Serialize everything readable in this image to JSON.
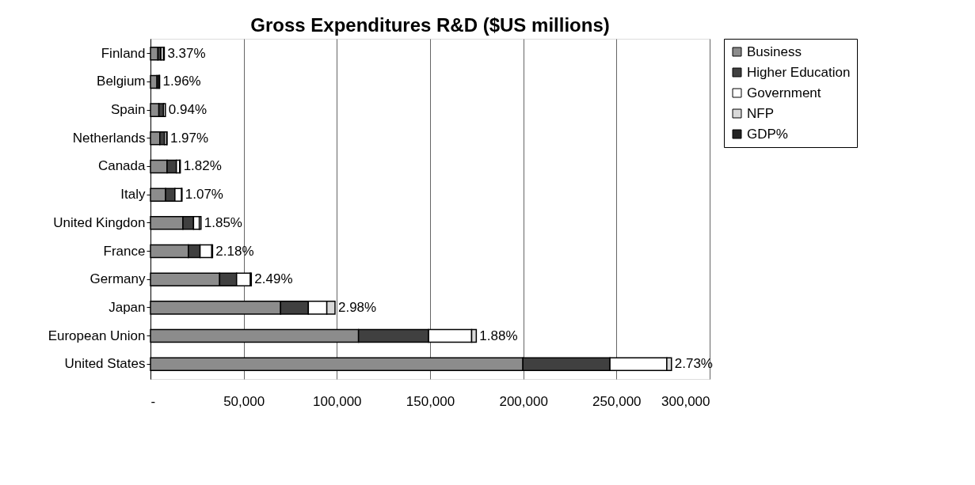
{
  "chart_data": {
    "type": "bar",
    "orientation": "horizontal",
    "stacked": true,
    "title": "Gross Expenditures R&D ($US millions)",
    "categories": [
      "Finland",
      "Belgium",
      "Spain",
      "Netherlands",
      "Canada",
      "Italy",
      "United Kingdon",
      "France",
      "Germany",
      "Japan",
      "European Union",
      "United States"
    ],
    "series": [
      {
        "name": "Business",
        "color": "#8c8c8c",
        "values": [
          4000,
          3500,
          4500,
          5000,
          8900,
          8100,
          17400,
          20300,
          37100,
          69800,
          111600,
          199800
        ]
      },
      {
        "name": "Higher Education",
        "color": "#404040",
        "values": [
          1600,
          1000,
          2500,
          2500,
          5000,
          5000,
          5700,
          6300,
          9100,
          14900,
          37600,
          46700
        ]
      },
      {
        "name": "Government",
        "color": "#ffffff",
        "values": [
          1400,
          300,
          1000,
          1200,
          1800,
          3600,
          3100,
          6300,
          7400,
          9900,
          23100,
          30500
        ]
      },
      {
        "name": "NFP",
        "color": "#d9d9d9",
        "values": [
          400,
          100,
          null,
          200,
          300,
          200,
          900,
          400,
          500,
          4400,
          2500,
          2500
        ]
      },
      {
        "name": "GDP%",
        "color": "#222222",
        "values": [
          null,
          null,
          null,
          null,
          null,
          null,
          null,
          null,
          null,
          null,
          null,
          null
        ],
        "value_labels": [
          "3.37%",
          "1.96%",
          "0.94%",
          "1.97%",
          "1.82%",
          "1.07%",
          "1.85%",
          "2.18%",
          "2.49%",
          "2.98%",
          "1.88%",
          "2.73%"
        ]
      }
    ],
    "xlim": [
      0,
      300000
    ],
    "xticks": [
      {
        "value": 0,
        "label": "-"
      },
      {
        "value": 50000,
        "label": "50,000"
      },
      {
        "value": 100000,
        "label": "100,000"
      },
      {
        "value": 150000,
        "label": "150,000"
      },
      {
        "value": 200000,
        "label": "200,000"
      },
      {
        "value": 250000,
        "label": "250,000"
      },
      {
        "value": 300000,
        "label": "300,000"
      }
    ],
    "grid": "x",
    "legend": "right"
  }
}
